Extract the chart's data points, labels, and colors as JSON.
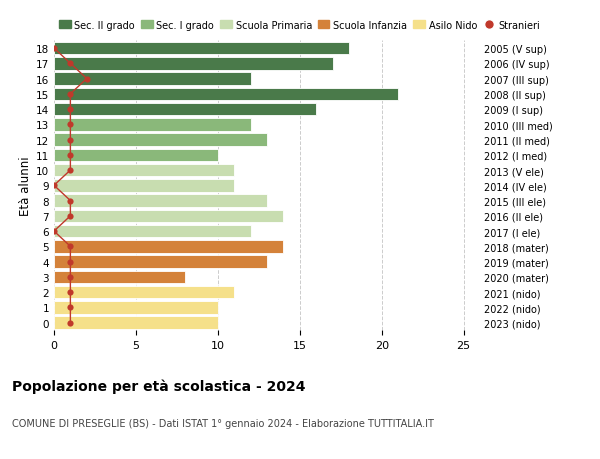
{
  "ages": [
    18,
    17,
    16,
    15,
    14,
    13,
    12,
    11,
    10,
    9,
    8,
    7,
    6,
    5,
    4,
    3,
    2,
    1,
    0
  ],
  "right_labels": [
    "2005 (V sup)",
    "2006 (IV sup)",
    "2007 (III sup)",
    "2008 (II sup)",
    "2009 (I sup)",
    "2010 (III med)",
    "2011 (II med)",
    "2012 (I med)",
    "2013 (V ele)",
    "2014 (IV ele)",
    "2015 (III ele)",
    "2016 (II ele)",
    "2017 (I ele)",
    "2018 (mater)",
    "2019 (mater)",
    "2020 (mater)",
    "2021 (nido)",
    "2022 (nido)",
    "2023 (nido)"
  ],
  "bar_values": [
    18,
    17,
    12,
    21,
    16,
    12,
    13,
    10,
    11,
    11,
    13,
    14,
    12,
    14,
    13,
    8,
    11,
    10,
    10
  ],
  "bar_colors": [
    "#4a7a4a",
    "#4a7a4a",
    "#4a7a4a",
    "#4a7a4a",
    "#4a7a4a",
    "#8ab87a",
    "#8ab87a",
    "#8ab87a",
    "#c8ddb0",
    "#c8ddb0",
    "#c8ddb0",
    "#c8ddb0",
    "#c8ddb0",
    "#d4823a",
    "#d4823a",
    "#d4823a",
    "#f5e08a",
    "#f5e08a",
    "#f5e08a"
  ],
  "stranieri_values": [
    0,
    1,
    2,
    1,
    1,
    1,
    1,
    1,
    1,
    0,
    1,
    1,
    0,
    1,
    1,
    1,
    1,
    1,
    1
  ],
  "legend_labels": [
    "Sec. II grado",
    "Sec. I grado",
    "Scuola Primaria",
    "Scuola Infanzia",
    "Asilo Nido",
    "Stranieri"
  ],
  "legend_colors": [
    "#4a7a4a",
    "#8ab87a",
    "#c8ddb0",
    "#d4823a",
    "#f5e08a",
    "#c0392b"
  ],
  "title": "Popolazione per età scolastica - 2024",
  "subtitle": "COMUNE DI PRESEGLIE (BS) - Dati ISTAT 1° gennaio 2024 - Elaborazione TUTTITALIA.IT",
  "ylabel_left": "Età alunni",
  "xlim": [
    0,
    26
  ],
  "xticks": [
    0,
    5,
    10,
    15,
    20,
    25
  ],
  "background_color": "#ffffff",
  "grid_color": "#cccccc"
}
